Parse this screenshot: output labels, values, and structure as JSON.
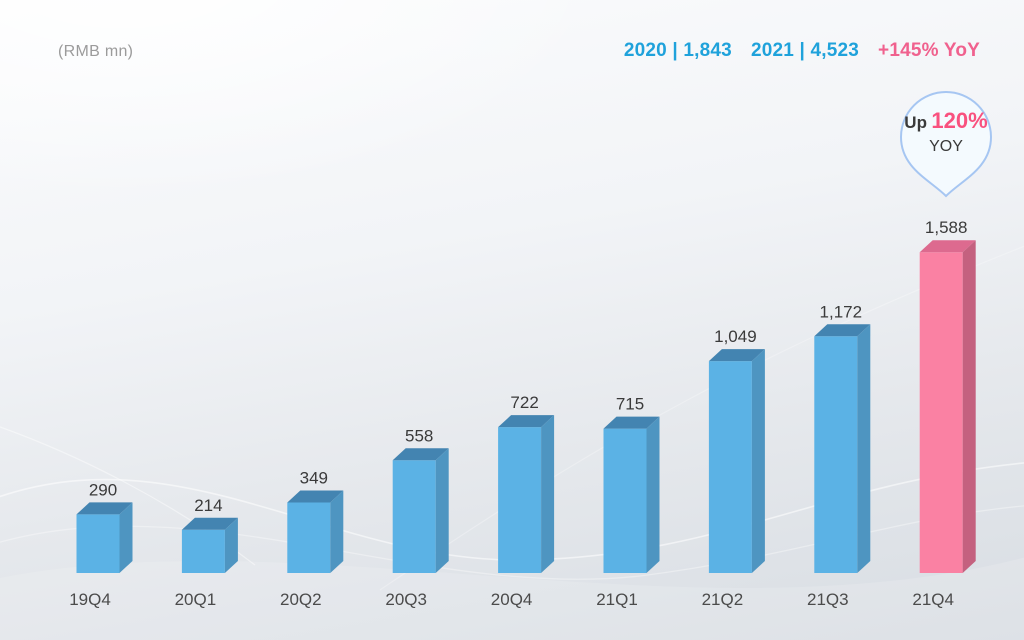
{
  "unit_label": "(RMB mn)",
  "header": {
    "items": [
      {
        "text": "2020 | 1,843",
        "color": "#1FA2DB"
      },
      {
        "text": "2021 | 4,523",
        "color": "#1FA2DB"
      },
      {
        "text": "+145% YoY",
        "color": "#F0618E"
      }
    ]
  },
  "callout": {
    "prefix": "Up",
    "highlight": "120%",
    "suffix": "YOY",
    "highlight_color": "#F9517F",
    "fill_color": "#F4FAFE",
    "border_color": "#A6C6F2"
  },
  "chart_data": {
    "type": "bar",
    "categories": [
      "19Q4",
      "20Q1",
      "20Q2",
      "20Q3",
      "20Q4",
      "21Q1",
      "21Q2",
      "21Q3",
      "21Q4"
    ],
    "values": [
      290,
      214,
      349,
      558,
      722,
      715,
      1049,
      1172,
      1588
    ],
    "value_labels": [
      "290",
      "214",
      "349",
      "558",
      "722",
      "715",
      "1,049",
      "1,172",
      "1,588"
    ],
    "highlight_index": 8,
    "unit": "RMB mn",
    "ylim": [
      0,
      1700
    ],
    "grid": false,
    "legend": "none",
    "bar_colors": {
      "default": {
        "front": "#5BB2E5",
        "top": "#4384B1",
        "side": "#4E95C1"
      },
      "highlight": {
        "front": "#FA81A3",
        "top": "#DD6A8F",
        "side": "#C4617F"
      }
    }
  }
}
